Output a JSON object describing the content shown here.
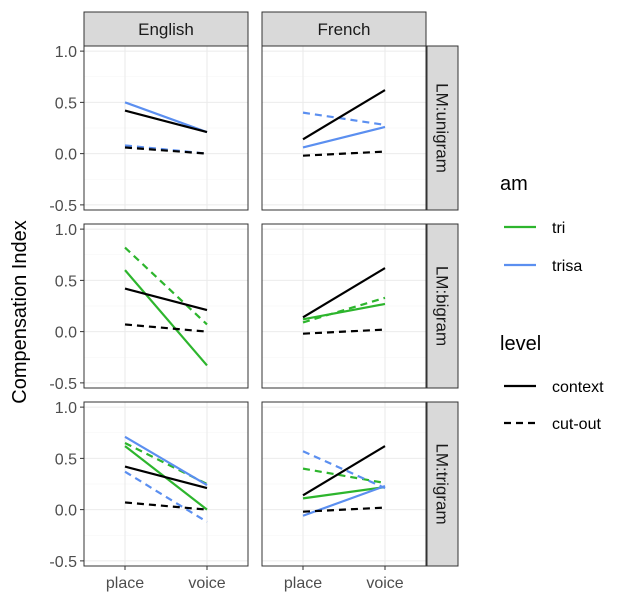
{
  "chart_data": {
    "type": "line",
    "facet_columns": [
      "English",
      "French"
    ],
    "facet_rows": [
      "LM:unigram",
      "LM:bigram",
      "LM:trigram"
    ],
    "x_categories": [
      "place",
      "voice"
    ],
    "ylabel": "Compensation Index",
    "ylim": [
      -0.55,
      1.05
    ],
    "yticks": [
      -0.5,
      0.0,
      0.5,
      1.0
    ],
    "ytick_labels": [
      "-0.5",
      "0.0",
      "0.5",
      "1.0"
    ],
    "grid": true,
    "legend_placement": "right",
    "legend": {
      "am": {
        "title": "am",
        "entries": [
          {
            "label": "tri",
            "color": "#2db52d"
          },
          {
            "label": "trisa",
            "color": "#5b8ff0"
          }
        ]
      },
      "level": {
        "title": "level",
        "entries": [
          {
            "label": "context",
            "dash": "solid"
          },
          {
            "label": "cut-out",
            "dash": "dashed"
          }
        ]
      }
    },
    "colors": {
      "none": "#000000",
      "tri": "#2db52d",
      "trisa": "#5b8ff0"
    },
    "panels": [
      {
        "row": 0,
        "col": 0,
        "series": [
          {
            "am": "trisa",
            "level": "context",
            "values": [
              0.5,
              0.21
            ]
          },
          {
            "am": "trisa",
            "level": "cut-out",
            "values": [
              0.08,
              0.0
            ]
          },
          {
            "am": "none",
            "level": "context",
            "values": [
              0.42,
              0.21
            ]
          },
          {
            "am": "none",
            "level": "cut-out",
            "values": [
              0.06,
              0.0
            ]
          }
        ]
      },
      {
        "row": 0,
        "col": 1,
        "series": [
          {
            "am": "trisa",
            "level": "context",
            "values": [
              0.06,
              0.26
            ]
          },
          {
            "am": "trisa",
            "level": "cut-out",
            "values": [
              0.4,
              0.28
            ]
          },
          {
            "am": "none",
            "level": "context",
            "values": [
              0.14,
              0.62
            ]
          },
          {
            "am": "none",
            "level": "cut-out",
            "values": [
              -0.02,
              0.02
            ]
          }
        ]
      },
      {
        "row": 1,
        "col": 0,
        "series": [
          {
            "am": "tri",
            "level": "context",
            "values": [
              0.6,
              -0.33
            ]
          },
          {
            "am": "tri",
            "level": "cut-out",
            "values": [
              0.82,
              0.07
            ]
          },
          {
            "am": "none",
            "level": "context",
            "values": [
              0.42,
              0.21
            ]
          },
          {
            "am": "none",
            "level": "cut-out",
            "values": [
              0.07,
              0.0
            ]
          }
        ]
      },
      {
        "row": 1,
        "col": 1,
        "series": [
          {
            "am": "tri",
            "level": "context",
            "values": [
              0.12,
              0.27
            ]
          },
          {
            "am": "tri",
            "level": "cut-out",
            "values": [
              0.09,
              0.33
            ]
          },
          {
            "am": "none",
            "level": "context",
            "values": [
              0.14,
              0.62
            ]
          },
          {
            "am": "none",
            "level": "cut-out",
            "values": [
              -0.02,
              0.02
            ]
          }
        ]
      },
      {
        "row": 2,
        "col": 0,
        "series": [
          {
            "am": "tri",
            "level": "context",
            "values": [
              0.62,
              0.0
            ]
          },
          {
            "am": "tri",
            "level": "cut-out",
            "values": [
              0.65,
              0.25
            ]
          },
          {
            "am": "trisa",
            "level": "context",
            "values": [
              0.71,
              0.24
            ]
          },
          {
            "am": "trisa",
            "level": "cut-out",
            "values": [
              0.37,
              -0.12
            ]
          },
          {
            "am": "none",
            "level": "context",
            "values": [
              0.42,
              0.21
            ]
          },
          {
            "am": "none",
            "level": "cut-out",
            "values": [
              0.07,
              0.0
            ]
          }
        ]
      },
      {
        "row": 2,
        "col": 1,
        "series": [
          {
            "am": "tri",
            "level": "context",
            "values": [
              0.11,
              0.22
            ]
          },
          {
            "am": "tri",
            "level": "cut-out",
            "values": [
              0.4,
              0.26
            ]
          },
          {
            "am": "trisa",
            "level": "context",
            "values": [
              -0.06,
              0.23
            ]
          },
          {
            "am": "trisa",
            "level": "cut-out",
            "values": [
              0.57,
              0.21
            ]
          },
          {
            "am": "none",
            "level": "context",
            "values": [
              0.14,
              0.62
            ]
          },
          {
            "am": "none",
            "level": "cut-out",
            "values": [
              -0.02,
              0.02
            ]
          }
        ]
      }
    ]
  }
}
